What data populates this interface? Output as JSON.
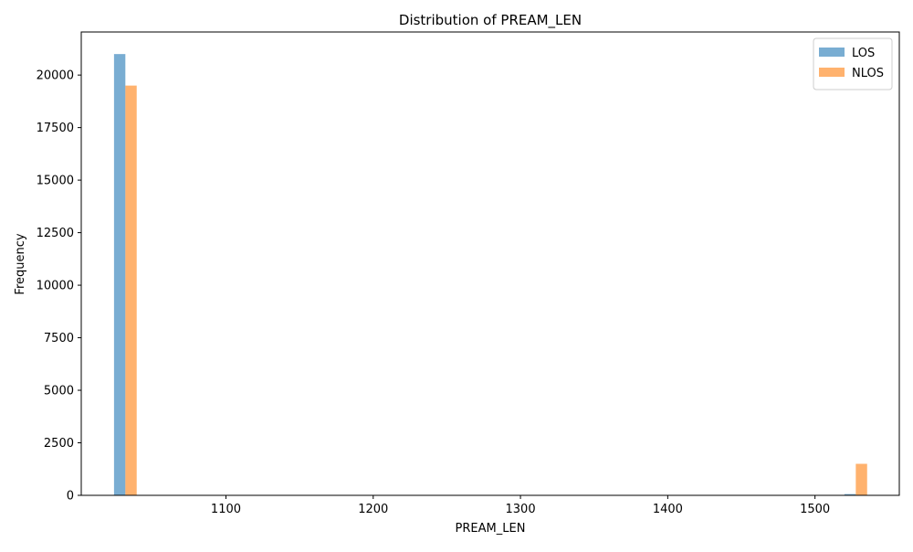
{
  "chart_data": {
    "type": "bar",
    "title": "Distribution of PREAM_LEN",
    "xlabel": "PREAM_LEN",
    "ylabel": "Frequency",
    "xlim": [
      1001.75,
      1557.25
    ],
    "ylim": [
      0,
      22050
    ],
    "x_ticks": [
      1100,
      1200,
      1300,
      1400,
      1500
    ],
    "y_ticks": [
      0,
      2500,
      5000,
      7500,
      10000,
      12500,
      15000,
      17500,
      20000
    ],
    "grid": false,
    "legend_position": "top-right",
    "series": [
      {
        "name": "LOS",
        "color": "#1f77b4",
        "opacity": 0.6,
        "bins": [
          {
            "x0": 1024,
            "x1": 1031.7,
            "value": 21000
          },
          {
            "x0": 1520,
            "x1": 1527.7,
            "value": 60
          }
        ]
      },
      {
        "name": "NLOS",
        "color": "#ff7f0e",
        "opacity": 0.6,
        "bins": [
          {
            "x0": 1031.7,
            "x1": 1039.4,
            "value": 19500
          },
          {
            "x0": 1527.7,
            "x1": 1535.4,
            "value": 1500
          }
        ]
      }
    ]
  }
}
